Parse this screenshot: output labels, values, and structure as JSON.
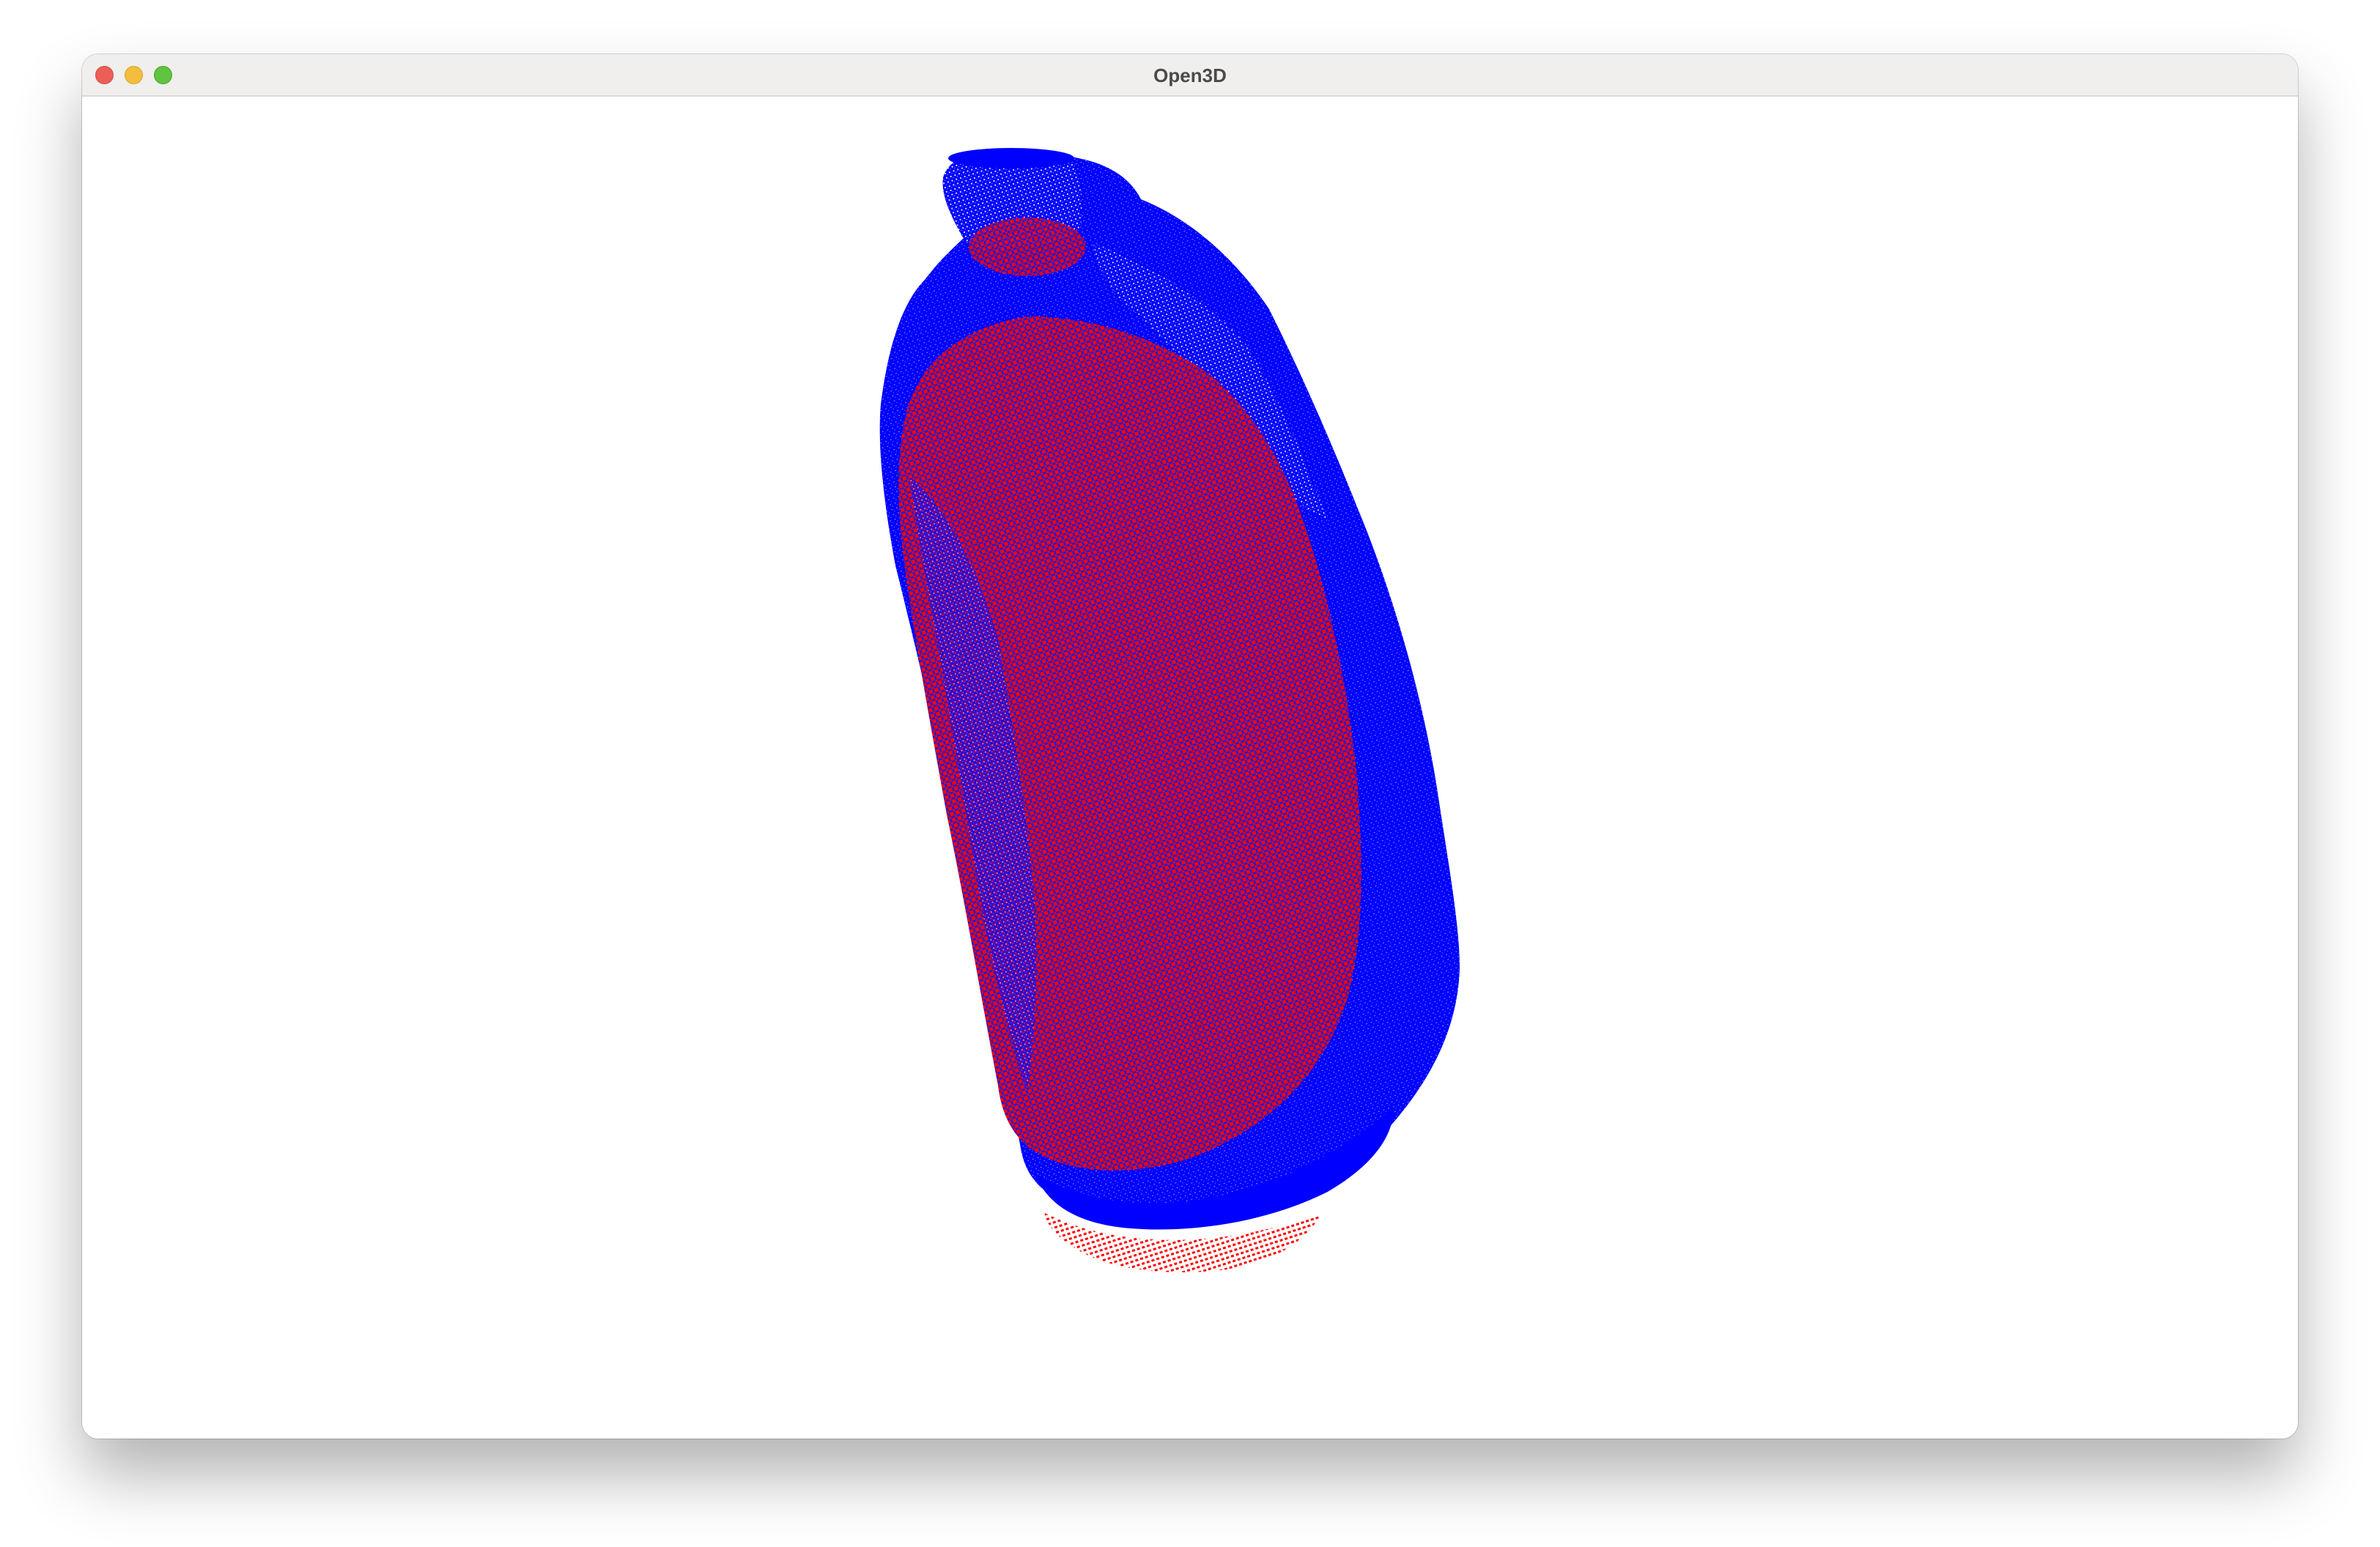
{
  "window": {
    "title": "Open3D",
    "controls": [
      "close",
      "minimize",
      "zoom"
    ]
  },
  "viewport": {
    "background": "#ffffff",
    "point_clouds": [
      {
        "name": "outer-bottle-cloud",
        "color": "#0000ff"
      },
      {
        "name": "inner-bottle-cloud",
        "color": "#ff0000"
      }
    ]
  }
}
